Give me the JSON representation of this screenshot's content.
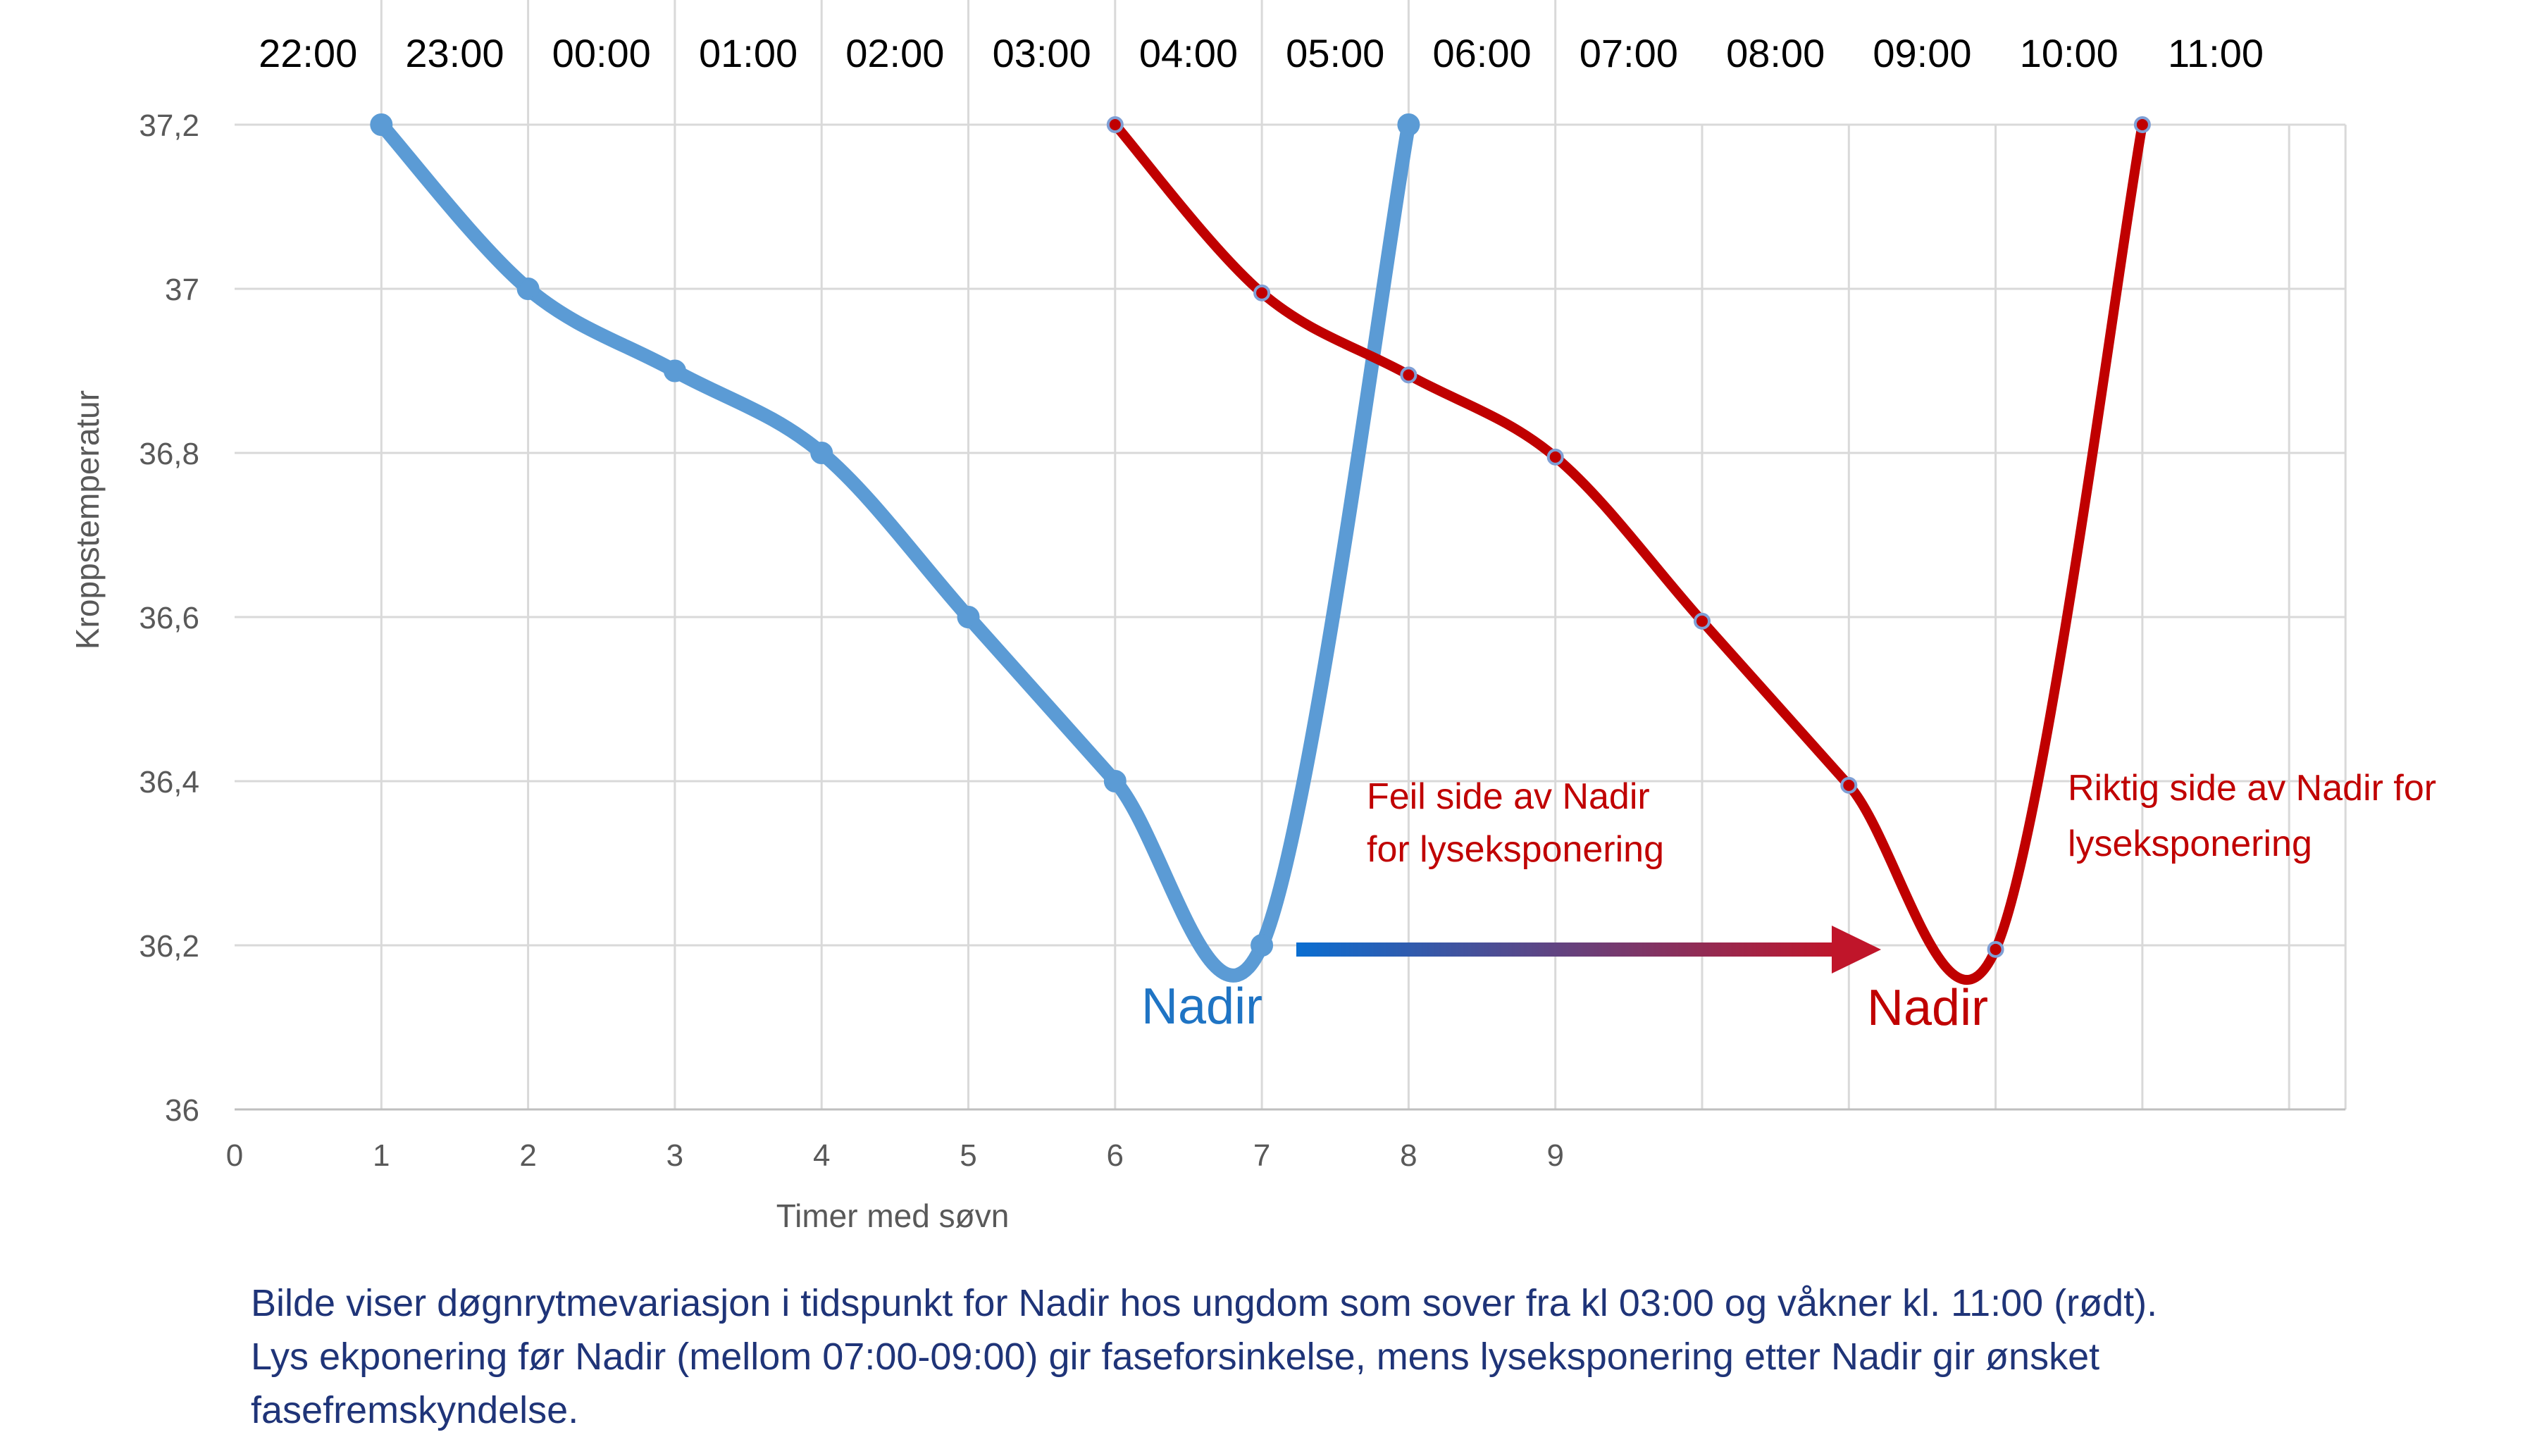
{
  "chart_data": {
    "type": "line",
    "title": "",
    "xlabel": "Timer med søvn",
    "ylabel": "Kroppstemperatur",
    "xlim": [
      0,
      14
    ],
    "ylim": [
      36,
      37.2
    ],
    "grid": true,
    "x_ticks": [
      "0",
      "1",
      "2",
      "3",
      "4",
      "5",
      "6",
      "7",
      "8",
      "9"
    ],
    "y_ticks": [
      "36",
      "36,2",
      "36,4",
      "36,6",
      "36,8",
      "37",
      "37,2"
    ],
    "top_time_labels": [
      "22:00",
      "23:00",
      "00:00",
      "01:00",
      "02:00",
      "03:00",
      "04:00",
      "05:00",
      "06:00",
      "07:00",
      "08:00",
      "09:00",
      "10:00",
      "11:00"
    ],
    "series": [
      {
        "color": "#5b9bd5",
        "x": [
          1,
          2,
          3,
          4,
          5,
          6,
          7,
          8
        ],
        "y": [
          37.2,
          37.0,
          36.9,
          36.8,
          36.6,
          36.4,
          36.2,
          37.2
        ]
      },
      {
        "color": "#c00000",
        "x": [
          6,
          7,
          8,
          9,
          10,
          11,
          12,
          13
        ],
        "y": [
          37.2,
          36.995,
          36.895,
          36.795,
          36.595,
          36.395,
          36.195,
          37.2
        ]
      }
    ],
    "annotations": {
      "nadir_blue": "Nadir",
      "nadir_red": "Nadir",
      "wrong_side_line1": "Feil side av Nadir",
      "wrong_side_line2": "for lyseksponering",
      "right_side_line1": "Riktig side av Nadir for",
      "right_side_line2": "lyseksponering"
    },
    "arrow_colors": [
      "#0a6ed1",
      "#c0152a"
    ]
  },
  "caption": {
    "line1": "Bilde viser døgnrytmevariasjon i tidspunkt for Nadir hos ungdom som sover fra kl 03:00 og våkner kl. 11:00 (rødt).",
    "line2": "Lys ekponering før Nadir (mellom 07:00-09:00) gir faseforsinkelse, mens lyseksponering etter Nadir gir ønsket",
    "line3": "fasefremskyndelse."
  }
}
